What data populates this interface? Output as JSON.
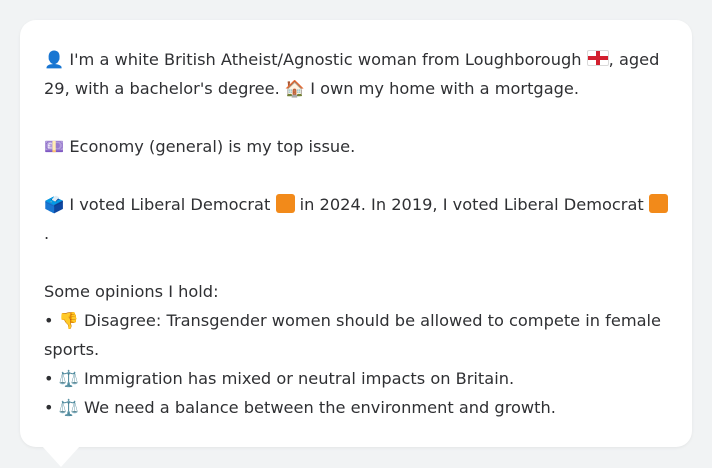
{
  "card": {
    "intro": {
      "person_icon": "👤",
      "text_a": "I'm a white British Atheist/Agnostic woman from Loughborough",
      "flag_icon": "england-flag-icon",
      "text_b": ", aged 29, with a bachelor's degree.",
      "home_icon": "🏠",
      "text_c": "I own my home with a mortgage."
    },
    "issue": {
      "icon": "💷",
      "text": "Economy (general) is my top issue."
    },
    "vote": {
      "icon": "🗳️",
      "text_a": "I voted Liberal Democrat",
      "text_b": "in 2024. In 2019, I voted Liberal Democrat",
      "text_c": ".",
      "party_color": "#f28a1a"
    },
    "opinions": {
      "heading": "Some opinions I hold:",
      "bullet": "•",
      "items": [
        {
          "icon": "👎",
          "text": "Disagree: Transgender women should be allowed to compete in female sports."
        },
        {
          "icon": "⚖️",
          "text": "Immigration has mixed or neutral impacts on Britain."
        },
        {
          "icon": "⚖️",
          "text": "We need a balance between the environment and growth."
        }
      ]
    }
  }
}
